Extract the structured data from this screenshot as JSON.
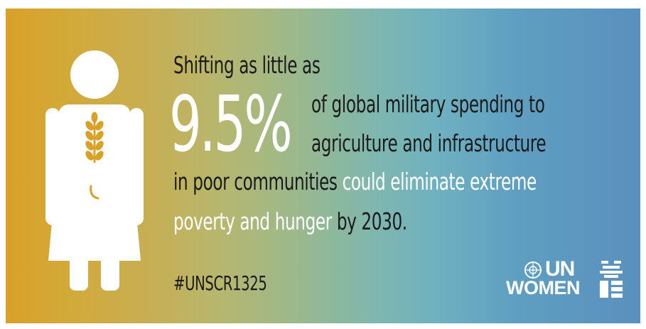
{
  "headline": {
    "intro": "Shifting as little as",
    "percent": "9.5%",
    "line_a": "of global military spending to",
    "line_b": "agriculture and infrastructure",
    "line_c_start": "in poor communities ",
    "line_c_highlight": "could eliminate extreme",
    "line_d_highlight": "poverty and hunger",
    "line_d_end": " by 2030."
  },
  "hashtag": "#UNSCR1325",
  "logo": {
    "top": "UN",
    "bottom": "WOMEN"
  },
  "colors": {
    "gradient_start": "#d9a128",
    "gradient_end": "#5a90be",
    "highlight": "#ffffff",
    "text": "#1b1b1b",
    "wheat": "#d9a128"
  },
  "icons": [
    "woman-figure-icon",
    "wheat-icon",
    "un-emblem-icon",
    "un-women-mark-icon"
  ]
}
